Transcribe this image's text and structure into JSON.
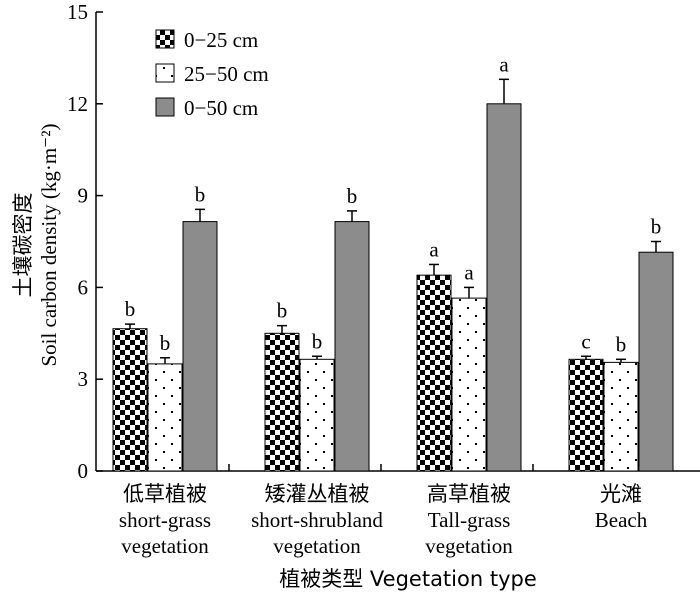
{
  "chart_data": {
    "type": "bar",
    "ylabel_cn": "土壤碳密度",
    "ylabel_en": "Soil carbon density (kg·m⁻²)",
    "xlabel": "植被类型 Vegetation type",
    "ylim": [
      0,
      15
    ],
    "yticks": [
      0,
      3,
      6,
      9,
      12,
      15
    ],
    "legend_position": "top-left",
    "categories": [
      {
        "cn": "低草植被",
        "en1": "short-grass",
        "en2": "vegetation"
      },
      {
        "cn": "矮灌丛植被",
        "en1": "short-shrubland",
        "en2": "vegetation"
      },
      {
        "cn": "高草植被",
        "en1": "Tall-grass",
        "en2": "vegetation"
      },
      {
        "cn": "光滩",
        "en1": "Beach",
        "en2": ""
      }
    ],
    "series": [
      {
        "name": "0−25 cm",
        "pattern": "checker",
        "values": [
          4.65,
          4.5,
          6.4,
          3.65
        ],
        "errors": [
          0.15,
          0.25,
          0.35,
          0.1
        ],
        "letters": [
          "b",
          "b",
          "a",
          "c"
        ]
      },
      {
        "name": "25−50 cm",
        "pattern": "dots",
        "values": [
          3.5,
          3.65,
          5.65,
          3.55
        ],
        "errors": [
          0.2,
          0.1,
          0.35,
          0.1
        ],
        "letters": [
          "b",
          "b",
          "a",
          "b"
        ]
      },
      {
        "name": "0−50 cm",
        "pattern": "gray",
        "values": [
          8.15,
          8.15,
          12.0,
          7.15
        ],
        "errors": [
          0.4,
          0.35,
          0.8,
          0.35
        ],
        "letters": [
          "b",
          "b",
          "a",
          "b"
        ]
      }
    ],
    "colors": {
      "gray": "#8c8c8c",
      "ink": "#000000",
      "paper": "#ffffff"
    }
  }
}
